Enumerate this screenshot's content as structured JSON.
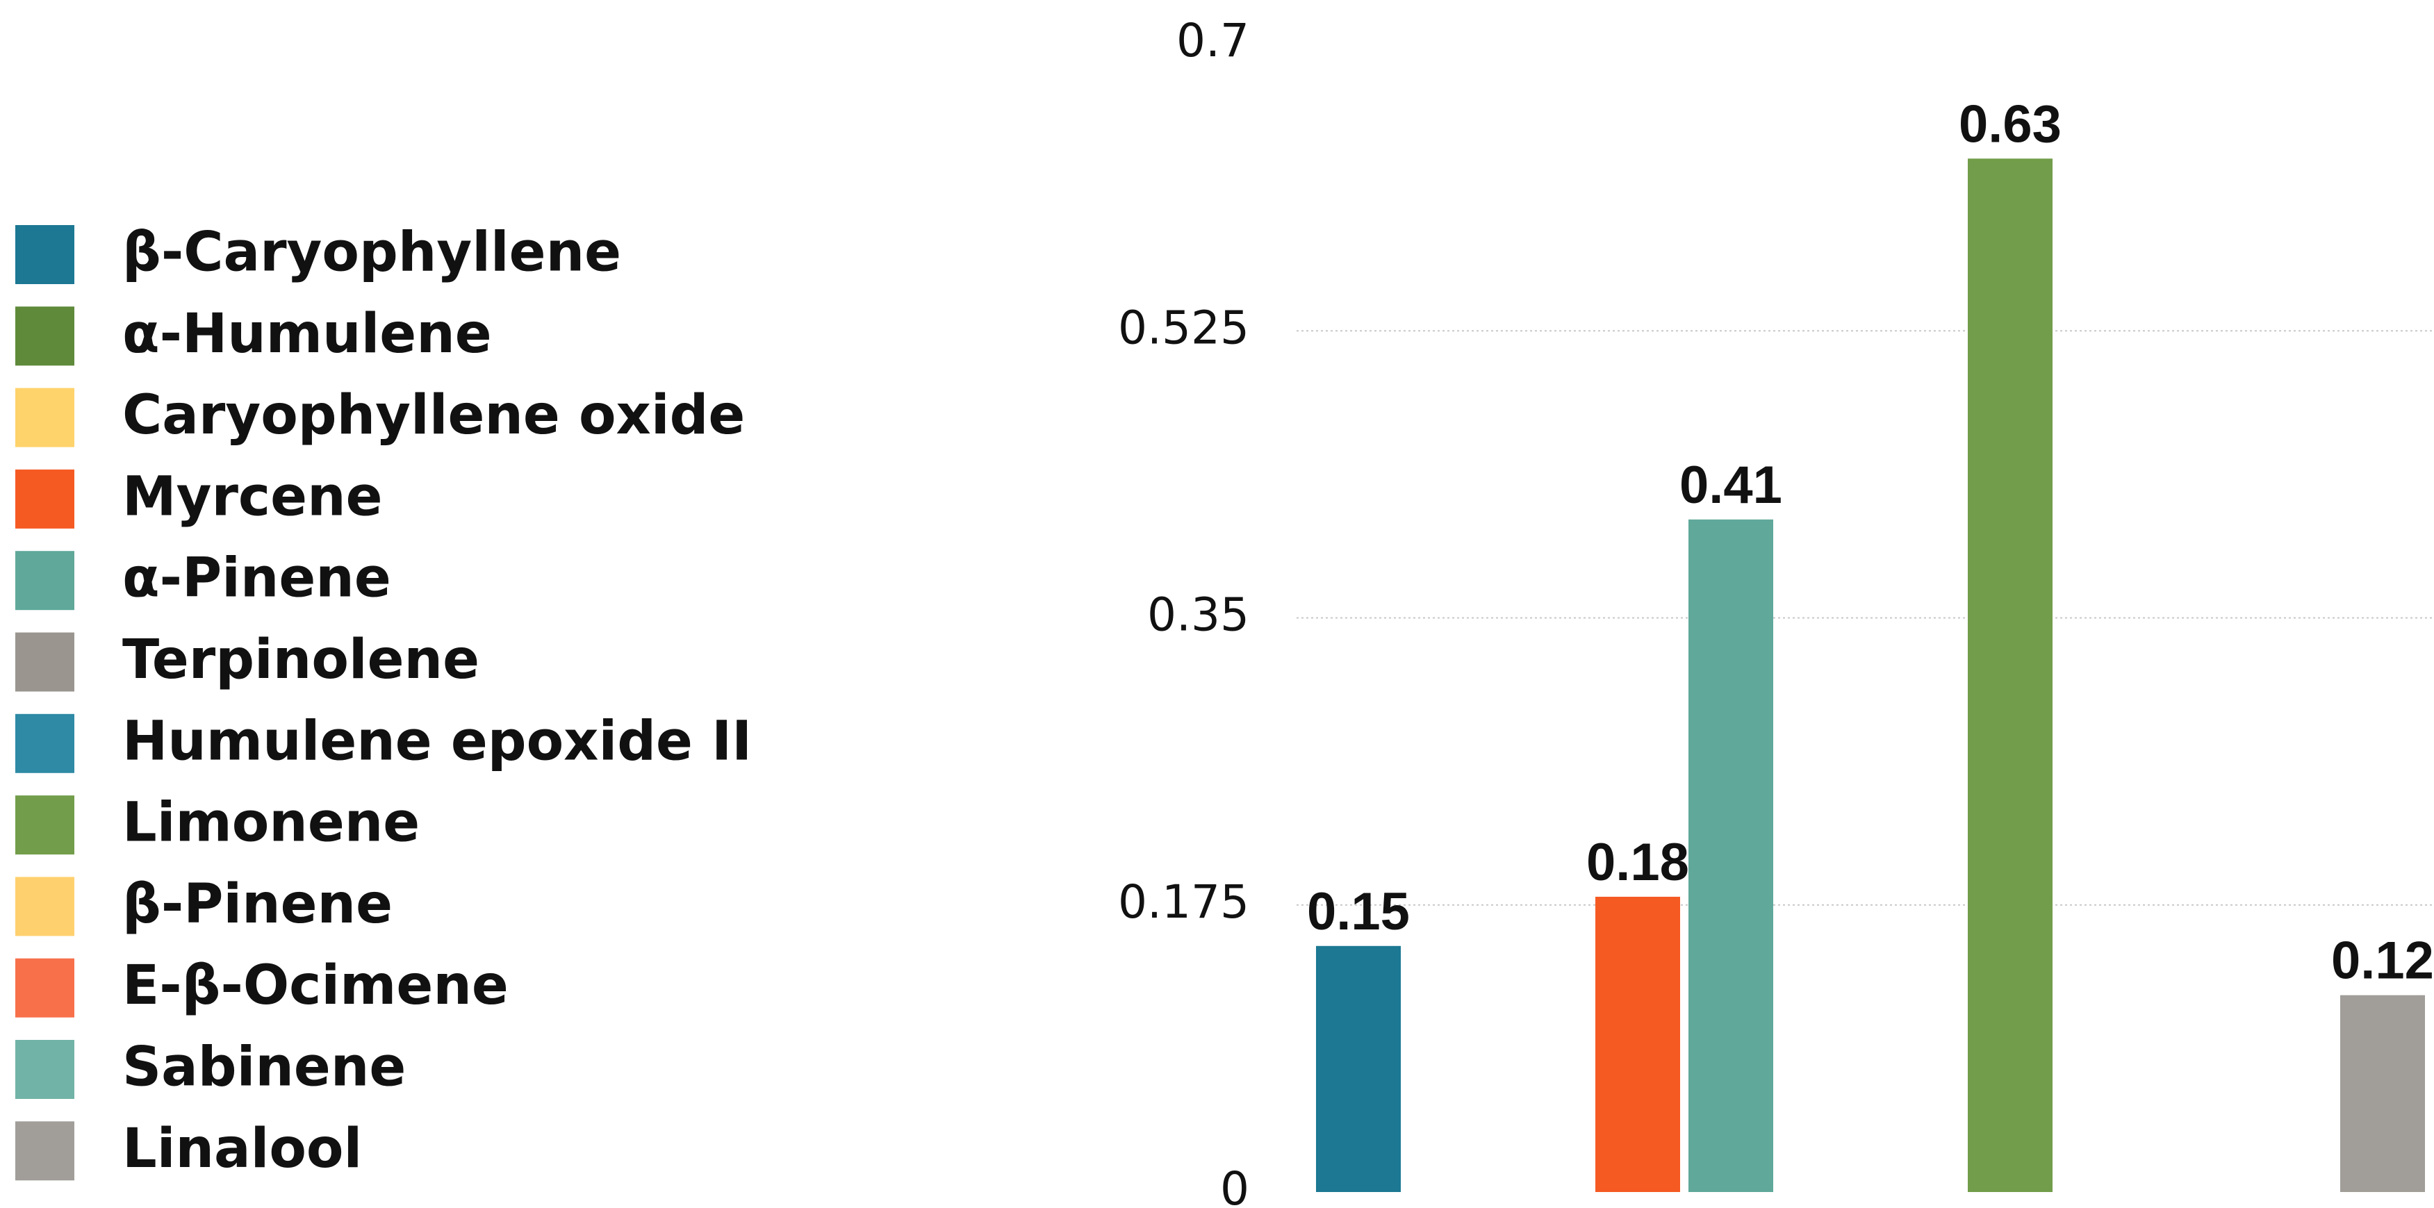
{
  "chart_data": {
    "type": "bar",
    "legend": "left",
    "grid": true,
    "ylim": [
      0,
      0.7
    ],
    "yticks": [
      0,
      0.175,
      0.35,
      0.525,
      0.7
    ],
    "series": [
      {
        "name": "β-Caryophyllene",
        "color": "#1c7893",
        "values": [
          0.15
        ]
      },
      {
        "name": "α-Humulene",
        "color": "#5e8a3a",
        "values": [
          null
        ]
      },
      {
        "name": "Caryophyllene oxide",
        "color": "#ffd36b",
        "values": [
          null
        ]
      },
      {
        "name": "Myrcene",
        "color": "#f55a23",
        "values": [
          0.18
        ]
      },
      {
        "name": "α-Pinene",
        "color": "#5fa89a",
        "values": [
          0.41
        ]
      },
      {
        "name": "Terpinolene",
        "color": "#9a958f",
        "values": [
          null
        ]
      },
      {
        "name": "Humulene epoxide II",
        "color": "#2e8aa5",
        "values": [
          null
        ]
      },
      {
        "name": "Limonene",
        "color": "#729d4a",
        "values": [
          0.63
        ]
      },
      {
        "name": "β-Pinene",
        "color": "#ffd06e",
        "values": [
          null
        ]
      },
      {
        "name": "E-β-Ocimene",
        "color": "#f7704a",
        "values": [
          null
        ]
      },
      {
        "name": "Sabinene",
        "color": "#72b3a7",
        "values": [
          null
        ]
      },
      {
        "name": "Linalool",
        "color": "#a19e99",
        "values": [
          0.12
        ]
      }
    ]
  }
}
